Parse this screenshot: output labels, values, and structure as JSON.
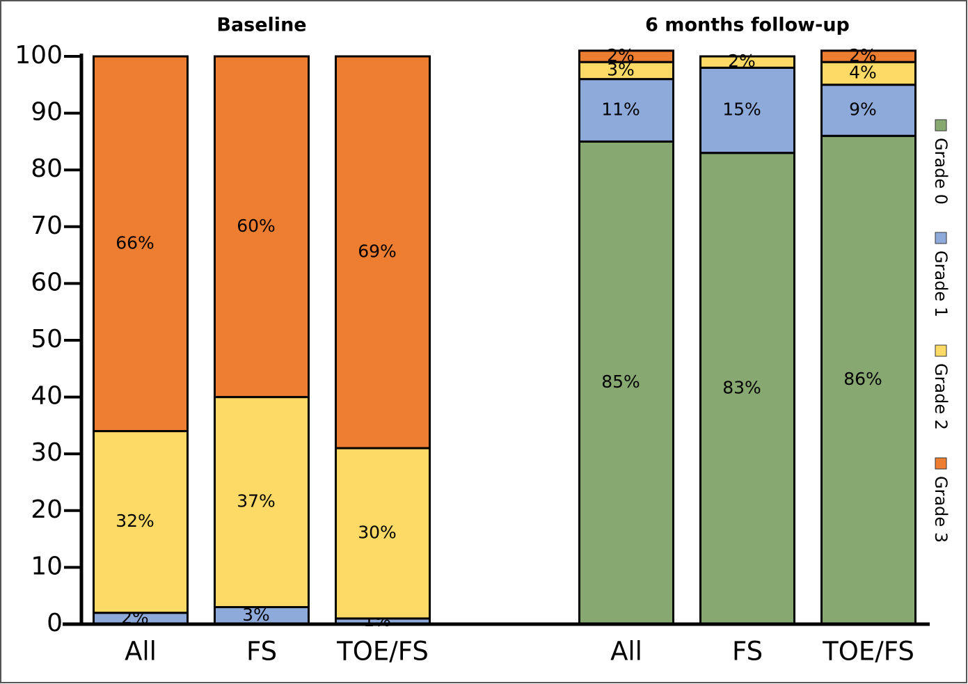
{
  "chart_data": {
    "type": "stacked-bar",
    "group_titles": [
      "Baseline",
      "6 months follow-up"
    ],
    "categories": [
      "All",
      "FS",
      "TOE/FS",
      "All",
      "FS",
      "TOE/FS"
    ],
    "series": [
      {
        "name": "Grade 0",
        "color": "#87a870",
        "values": [
          null,
          null,
          null,
          85,
          83,
          86
        ],
        "value_labels": [
          null,
          null,
          null,
          "85%",
          "83%",
          "86%"
        ]
      },
      {
        "name": "Grade 1",
        "color": "#8eaadb",
        "values": [
          2,
          3,
          1,
          11,
          15,
          9
        ],
        "value_labels": [
          "2%",
          "3%",
          "1%",
          "11%",
          "15%",
          "9%"
        ]
      },
      {
        "name": "Grade 2",
        "color": "#fdd966",
        "values": [
          32,
          37,
          30,
          3,
          2,
          4
        ],
        "value_labels": [
          "32%",
          "37%",
          "30%",
          "3%",
          "2%",
          "4%"
        ]
      },
      {
        "name": "Grade 3",
        "color": "#ed7d31",
        "values": [
          66,
          60,
          69,
          2,
          null,
          2
        ],
        "value_labels": [
          "66%",
          "60%",
          "69%",
          "2%",
          null,
          "2%"
        ]
      }
    ],
    "ylim": [
      0,
      100
    ],
    "yticks": [
      0,
      10,
      20,
      30,
      40,
      50,
      60,
      70,
      80,
      90,
      100
    ]
  }
}
